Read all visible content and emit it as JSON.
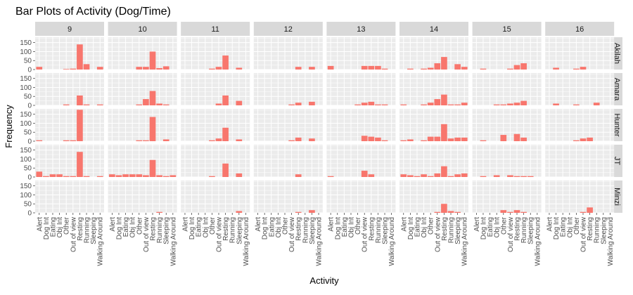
{
  "chart_data": {
    "type": "bar",
    "title": "Bar Plots of Activity (Dog/Time)",
    "xlabel": "Activity",
    "ylabel": "Frequency",
    "ylim": [
      0,
      180
    ],
    "yticks": [
      0,
      50,
      100,
      150
    ],
    "grid": true,
    "bar_color": "#F8766D",
    "panel_bg": "#EBEBEB",
    "strip_bg": "#D9D9D9",
    "categories": [
      "Alert",
      "Dog Int",
      "Eating",
      "Obj Int",
      "Other",
      "Out of view",
      "Resting",
      "Running",
      "Sleeping",
      "Walking Around"
    ],
    "columns": [
      "9",
      "10",
      "11",
      "12",
      "13",
      "14",
      "15",
      "16"
    ],
    "rows": [
      "Akilah",
      "Amara",
      "Hunter",
      "JT",
      "Minzi"
    ],
    "values": {
      "Akilah": {
        "9": [
          15,
          0,
          0,
          0,
          3,
          5,
          140,
          30,
          0,
          15
        ],
        "10": [
          0,
          0,
          0,
          0,
          15,
          15,
          100,
          8,
          18,
          0
        ],
        "11": [
          0,
          0,
          0,
          0,
          5,
          15,
          78,
          0,
          10,
          0
        ],
        "12": [
          0,
          0,
          0,
          0,
          0,
          0,
          15,
          0,
          15,
          0
        ],
        "13": [
          20,
          0,
          0,
          0,
          0,
          20,
          20,
          20,
          5,
          0
        ],
        "14": [
          0,
          5,
          0,
          5,
          10,
          35,
          70,
          0,
          30,
          15
        ],
        "15": [
          0,
          5,
          0,
          0,
          0,
          5,
          25,
          35,
          0,
          0
        ],
        "16": [
          0,
          10,
          0,
          0,
          5,
          15,
          0,
          0,
          0,
          0
        ]
      },
      "Amara": {
        "9": [
          0,
          0,
          0,
          0,
          5,
          0,
          55,
          5,
          0,
          5
        ],
        "10": [
          0,
          0,
          0,
          0,
          5,
          35,
          80,
          10,
          5,
          0
        ],
        "11": [
          0,
          0,
          0,
          0,
          0,
          10,
          55,
          0,
          25,
          0
        ],
        "12": [
          0,
          0,
          0,
          0,
          0,
          5,
          15,
          0,
          20,
          0
        ],
        "13": [
          0,
          0,
          0,
          0,
          5,
          15,
          20,
          5,
          5,
          0
        ],
        "14": [
          5,
          0,
          0,
          5,
          15,
          35,
          60,
          5,
          5,
          15
        ],
        "15": [
          0,
          0,
          0,
          5,
          5,
          10,
          15,
          25,
          0,
          0
        ],
        "16": [
          0,
          10,
          0,
          0,
          5,
          0,
          0,
          15,
          0,
          0
        ]
      },
      "Hunter": {
        "9": [
          5,
          0,
          0,
          0,
          5,
          5,
          175,
          0,
          0,
          0
        ],
        "10": [
          0,
          0,
          0,
          0,
          5,
          5,
          135,
          0,
          10,
          0
        ],
        "11": [
          0,
          0,
          0,
          0,
          5,
          15,
          75,
          0,
          10,
          0
        ],
        "12": [
          0,
          0,
          0,
          0,
          0,
          5,
          20,
          0,
          15,
          0
        ],
        "13": [
          0,
          0,
          0,
          0,
          0,
          30,
          25,
          20,
          5,
          0
        ],
        "14": [
          5,
          10,
          0,
          5,
          25,
          25,
          95,
          15,
          20,
          20
        ],
        "15": [
          0,
          5,
          0,
          0,
          35,
          0,
          40,
          20,
          0,
          0
        ],
        "16": [
          0,
          0,
          0,
          0,
          5,
          15,
          20,
          0,
          0,
          0
        ]
      },
      "JT": {
        "9": [
          30,
          5,
          15,
          15,
          5,
          5,
          140,
          5,
          0,
          5
        ],
        "10": [
          15,
          10,
          15,
          15,
          15,
          10,
          95,
          10,
          5,
          10
        ],
        "11": [
          0,
          0,
          0,
          0,
          5,
          0,
          75,
          0,
          20,
          0
        ],
        "12": [
          0,
          0,
          0,
          0,
          0,
          0,
          15,
          0,
          0,
          0
        ],
        "13": [
          5,
          0,
          0,
          0,
          0,
          35,
          15,
          0,
          0,
          0
        ],
        "14": [
          15,
          10,
          5,
          15,
          5,
          20,
          60,
          5,
          15,
          20
        ],
        "15": [
          0,
          5,
          0,
          10,
          0,
          10,
          5,
          5,
          5,
          0
        ],
        "16": [
          0,
          0,
          0,
          0,
          0,
          0,
          0,
          0,
          0,
          0
        ]
      },
      "Minzi": {
        "9": [
          0,
          0,
          0,
          0,
          0,
          0,
          0,
          0,
          0,
          0
        ],
        "10": [
          0,
          0,
          0,
          0,
          0,
          0,
          0,
          5,
          0,
          0
        ],
        "11": [
          0,
          0,
          0,
          0,
          0,
          0,
          0,
          0,
          10,
          0
        ],
        "12": [
          0,
          0,
          0,
          0,
          0,
          0,
          5,
          0,
          15,
          0
        ],
        "13": [
          0,
          0,
          0,
          0,
          0,
          0,
          0,
          0,
          0,
          0
        ],
        "14": [
          0,
          0,
          0,
          0,
          0,
          5,
          50,
          10,
          5,
          0
        ],
        "15": [
          0,
          0,
          0,
          0,
          15,
          5,
          15,
          5,
          0,
          0
        ],
        "16": [
          0,
          0,
          0,
          0,
          0,
          5,
          30,
          0,
          0,
          0
        ]
      }
    }
  }
}
